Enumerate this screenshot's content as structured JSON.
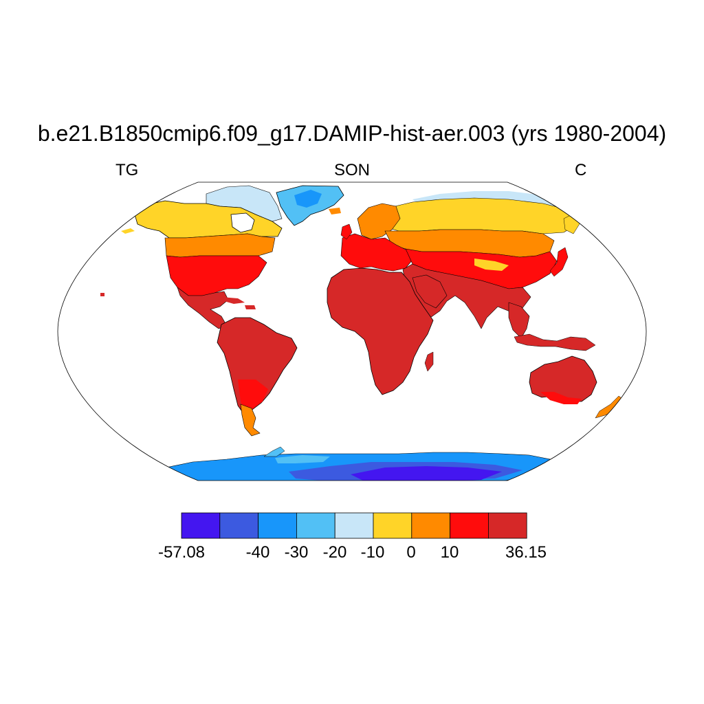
{
  "title": "b.e21.B1850cmip6.f09_g17.DAMIP-hist-aer.003 (yrs 1980-2004)",
  "left_label": "TG",
  "center_label": "SON",
  "right_label": "C",
  "colorbar": {
    "colors": [
      "#4416f0",
      "#3c5ae0",
      "#1896fa",
      "#52c0f5",
      "#c8e6f8",
      "#ffd428",
      "#ff8a00",
      "#ff0c0c",
      "#d62828"
    ],
    "min": "-57.08",
    "max": "36.15",
    "ticks": [
      "-40",
      "-30",
      "-20",
      "-10",
      "0",
      "10"
    ]
  },
  "colors": {
    "ocean": "#ffffff",
    "coast": "#000000"
  }
}
